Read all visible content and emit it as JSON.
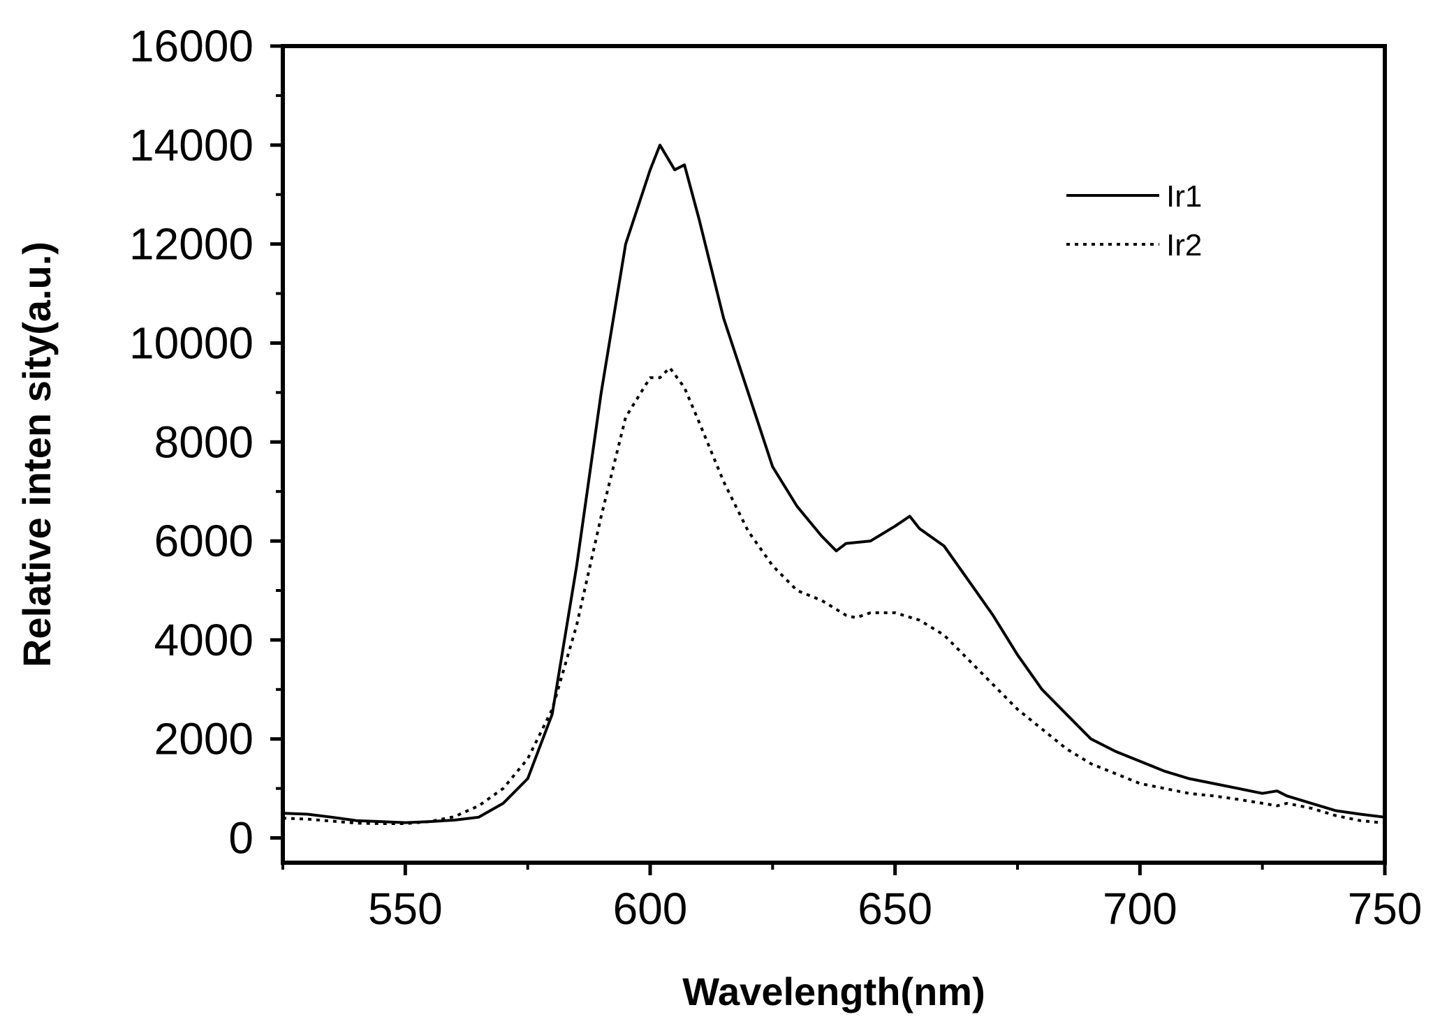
{
  "chart_data": {
    "type": "line",
    "title": "",
    "xlabel": "Wavelength(nm)",
    "ylabel": "Relative inten sity(a.u.)",
    "xlim": [
      525,
      750
    ],
    "ylim": [
      -500,
      16000
    ],
    "xticks": [
      550,
      600,
      650,
      700,
      750
    ],
    "yticks": [
      0,
      2000,
      4000,
      6000,
      8000,
      10000,
      12000,
      14000,
      16000
    ],
    "xtick_labels": [
      "550",
      "600",
      "650",
      "700",
      "750"
    ],
    "ytick_labels": [
      "0",
      "2000",
      "4000",
      "6000",
      "8000",
      "10000",
      "12000",
      "14000",
      "16000"
    ],
    "grid": false,
    "legend_position": "top-right",
    "series": [
      {
        "name": "Ir1",
        "style": "solid",
        "color": "#000000",
        "x": [
          525,
          530,
          535,
          540,
          545,
          550,
          555,
          560,
          565,
          570,
          575,
          580,
          585,
          590,
          595,
          600,
          602,
          605,
          607,
          610,
          615,
          620,
          625,
          630,
          635,
          638,
          640,
          645,
          650,
          653,
          655,
          660,
          665,
          670,
          675,
          680,
          685,
          690,
          695,
          700,
          705,
          710,
          715,
          720,
          725,
          728,
          730,
          735,
          740,
          745,
          750
        ],
        "values": [
          500,
          480,
          420,
          350,
          330,
          310,
          330,
          360,
          420,
          700,
          1200,
          2500,
          5500,
          9000,
          12000,
          13500,
          14000,
          13500,
          13600,
          12500,
          10500,
          9000,
          7500,
          6700,
          6100,
          5800,
          5950,
          6000,
          6300,
          6500,
          6250,
          5900,
          5200,
          4500,
          3700,
          3000,
          2500,
          2000,
          1750,
          1550,
          1350,
          1200,
          1100,
          1000,
          900,
          950,
          850,
          700,
          550,
          480,
          420
        ]
      },
      {
        "name": "Ir2",
        "style": "dotted",
        "color": "#000000",
        "x": [
          525,
          530,
          535,
          540,
          545,
          550,
          555,
          560,
          565,
          570,
          575,
          580,
          585,
          590,
          595,
          600,
          602,
          604,
          607,
          610,
          615,
          620,
          625,
          630,
          635,
          640,
          642,
          645,
          650,
          655,
          660,
          665,
          670,
          675,
          680,
          685,
          690,
          695,
          700,
          705,
          710,
          715,
          720,
          725,
          728,
          730,
          735,
          740,
          745,
          750
        ],
        "values": [
          400,
          380,
          340,
          300,
          290,
          290,
          330,
          430,
          650,
          1000,
          1600,
          2600,
          4300,
          6500,
          8500,
          9300,
          9300,
          9500,
          9100,
          8400,
          7200,
          6200,
          5500,
          5000,
          4800,
          4500,
          4450,
          4550,
          4550,
          4400,
          4100,
          3600,
          3100,
          2600,
          2200,
          1800,
          1500,
          1300,
          1100,
          1000,
          900,
          850,
          780,
          700,
          650,
          700,
          600,
          450,
          350,
          300
        ]
      }
    ]
  }
}
